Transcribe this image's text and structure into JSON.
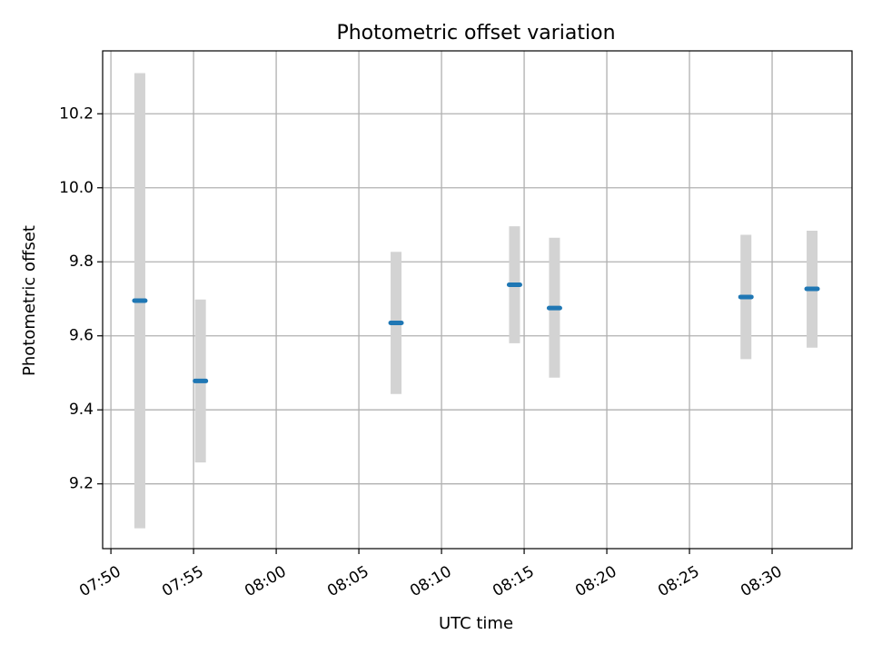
{
  "chart_data": {
    "type": "scatter",
    "title": "Photometric offset variation",
    "xlabel": "UTC time",
    "ylabel": "Photometric offset",
    "x_axis": {
      "type": "time",
      "range": [
        "07:49:30",
        "08:34:50"
      ],
      "ticks": [
        "07:50",
        "07:55",
        "08:00",
        "08:05",
        "08:10",
        "08:15",
        "08:20",
        "08:25",
        "08:30"
      ]
    },
    "y_axis": {
      "range": [
        9.025,
        10.37
      ],
      "ticks": [
        9.2,
        9.4,
        9.6,
        9.8,
        10.0,
        10.2
      ],
      "tick_labels": [
        "9.2",
        "9.4",
        "9.6",
        "9.8",
        "10.0",
        "10.2"
      ]
    },
    "grid": true,
    "series": [
      {
        "points": [
          {
            "time": "07:51:45",
            "y": 9.695,
            "err_low": 9.08,
            "err_high": 10.31
          },
          {
            "time": "07:55:25",
            "y": 9.478,
            "err_low": 9.258,
            "err_high": 9.698
          },
          {
            "time": "08:07:15",
            "y": 9.635,
            "err_low": 9.443,
            "err_high": 9.827
          },
          {
            "time": "08:14:25",
            "y": 9.738,
            "err_low": 9.58,
            "err_high": 9.896
          },
          {
            "time": "08:16:50",
            "y": 9.675,
            "err_low": 9.487,
            "err_high": 9.865
          },
          {
            "time": "08:28:25",
            "y": 9.705,
            "err_low": 9.537,
            "err_high": 9.873
          },
          {
            "time": "08:32:25",
            "y": 9.727,
            "err_low": 9.568,
            "err_high": 9.884
          }
        ]
      }
    ],
    "colors": {
      "marker": "#1f77b4",
      "errorbar": "#d3d3d3",
      "grid": "#b0b0b0",
      "axes": "#000000"
    }
  }
}
